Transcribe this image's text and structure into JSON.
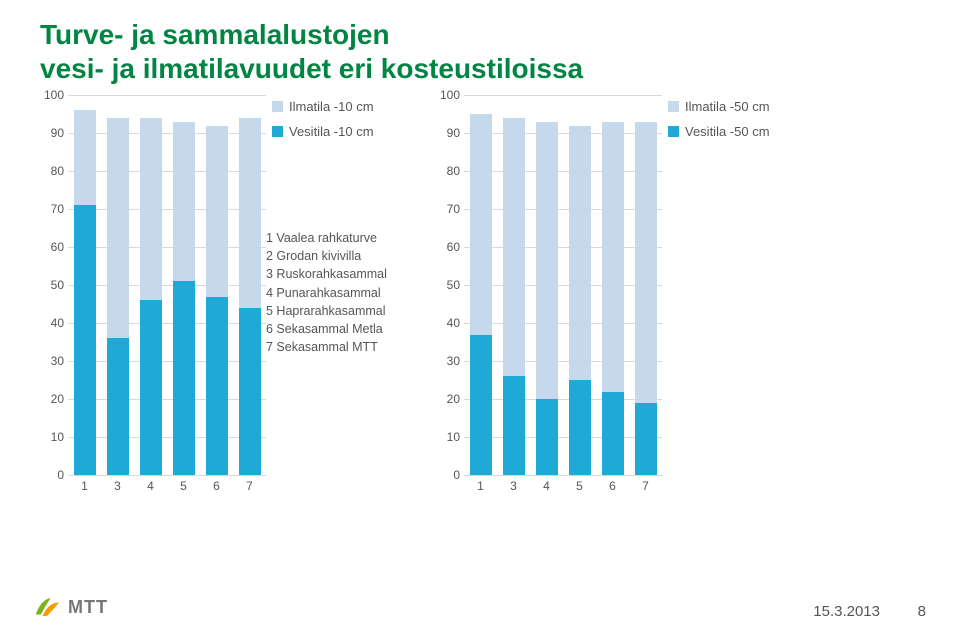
{
  "title_line1": "Turve- ja sammalalustojen",
  "title_line2": "vesi- ja ilmatilavuudet eri kosteustiloissa",
  "footer": {
    "date": "15.3.2013",
    "page": "8"
  },
  "logo_text": "MTT",
  "colors": {
    "ilma": "#c6d9ec",
    "vesi": "#1fa9d6",
    "grid": "#d9d9d9",
    "title": "#008542",
    "text": "#555"
  },
  "ymax": 100,
  "ytick_step": 10,
  "chart_left": {
    "legend": [
      {
        "label": "Ilmatila -10 cm",
        "color": "#c6d9ec"
      },
      {
        "label": "Vesitila -10 cm",
        "color": "#1fa9d6"
      }
    ],
    "categories": [
      "1",
      "3",
      "4",
      "5",
      "6",
      "7"
    ],
    "ilma": [
      25,
      58,
      48,
      42,
      45,
      50
    ],
    "vesi": [
      71,
      36,
      46,
      51,
      47,
      44
    ]
  },
  "chart_right": {
    "legend": [
      {
        "label": "Ilmatila -50 cm",
        "color": "#c6d9ec"
      },
      {
        "label": "Vesitila -50 cm",
        "color": "#1fa9d6"
      }
    ],
    "categories": [
      "1",
      "3",
      "4",
      "5",
      "6",
      "7"
    ],
    "ilma": [
      58,
      68,
      73,
      67,
      71,
      74
    ],
    "vesi": [
      37,
      26,
      20,
      25,
      22,
      19
    ]
  },
  "substrate_list": [
    "1 Vaalea rahkaturve",
    "2 Grodan kivivilla",
    "3 Ruskorahkasammal",
    "4 Punarahkasammal",
    "5 Haprarahkasammal",
    "6 Sekasammal Metla",
    "7 Sekasammal MTT"
  ]
}
